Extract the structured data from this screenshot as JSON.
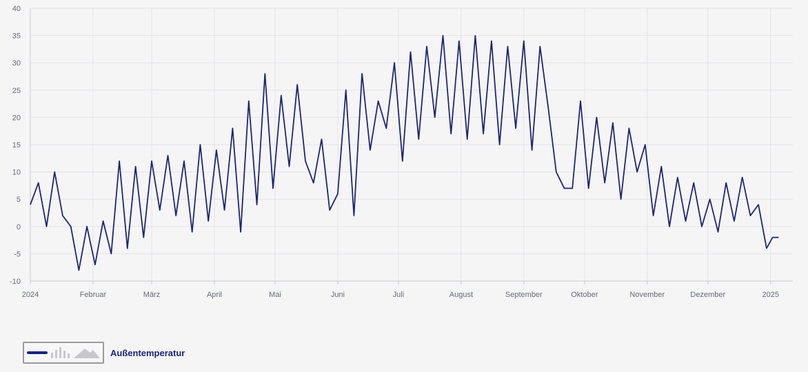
{
  "chart_data": {
    "type": "line",
    "series": [
      {
        "name": "Außentemperatur",
        "color": "#1b2578",
        "x": [
          "2024-01-01",
          "2024-01-05",
          "2024-01-09",
          "2024-01-13",
          "2024-01-17",
          "2024-01-21",
          "2024-01-25",
          "2024-01-29",
          "2024-02-02",
          "2024-02-06",
          "2024-02-10",
          "2024-02-14",
          "2024-02-18",
          "2024-02-22",
          "2024-02-26",
          "2024-03-01",
          "2024-03-05",
          "2024-03-09",
          "2024-03-13",
          "2024-03-17",
          "2024-03-21",
          "2024-03-25",
          "2024-03-29",
          "2024-04-02",
          "2024-04-06",
          "2024-04-10",
          "2024-04-14",
          "2024-04-18",
          "2024-04-22",
          "2024-04-26",
          "2024-04-30",
          "2024-05-04",
          "2024-05-08",
          "2024-05-12",
          "2024-05-16",
          "2024-05-20",
          "2024-05-24",
          "2024-05-28",
          "2024-06-01",
          "2024-06-05",
          "2024-06-09",
          "2024-06-13",
          "2024-06-17",
          "2024-06-21",
          "2024-06-25",
          "2024-06-29",
          "2024-07-03",
          "2024-07-07",
          "2024-07-11",
          "2024-07-15",
          "2024-07-19",
          "2024-07-23",
          "2024-07-27",
          "2024-07-31",
          "2024-08-04",
          "2024-08-08",
          "2024-08-12",
          "2024-08-16",
          "2024-08-20",
          "2024-08-24",
          "2024-08-28",
          "2024-09-01",
          "2024-09-05",
          "2024-09-09",
          "2024-09-13",
          "2024-09-17",
          "2024-09-21",
          "2024-09-25",
          "2024-09-29",
          "2024-10-03",
          "2024-10-07",
          "2024-10-11",
          "2024-10-15",
          "2024-10-19",
          "2024-10-23",
          "2024-10-27",
          "2024-10-31",
          "2024-11-04",
          "2024-11-08",
          "2024-11-12",
          "2024-11-16",
          "2024-11-20",
          "2024-11-24",
          "2024-11-28",
          "2024-12-02",
          "2024-12-06",
          "2024-12-10",
          "2024-12-14",
          "2024-12-18",
          "2024-12-22",
          "2024-12-26",
          "2024-12-30",
          "2025-01-02",
          "2025-01-05"
        ],
        "values": [
          4,
          8,
          0,
          10,
          2,
          0,
          -8,
          0,
          -7,
          1,
          -5,
          12,
          -4,
          11,
          -2,
          12,
          3,
          13,
          2,
          12,
          -1,
          15,
          1,
          14,
          3,
          18,
          -1,
          23,
          4,
          28,
          7,
          24,
          11,
          26,
          12,
          8,
          16,
          3,
          6,
          25,
          2,
          28,
          14,
          23,
          18,
          30,
          12,
          32,
          16,
          33,
          20,
          35,
          17,
          34,
          16,
          35,
          17,
          34,
          15,
          33,
          18,
          34,
          14,
          33,
          22,
          10,
          7,
          7,
          23,
          7,
          20,
          8,
          19,
          5,
          18,
          10,
          15,
          2,
          11,
          0,
          9,
          1,
          8,
          0,
          5,
          -1,
          8,
          1,
          9,
          2,
          4,
          -4,
          -2,
          -2
        ]
      }
    ],
    "xlim": [
      "2024-01-01",
      "2025-01-12"
    ],
    "ylim": [
      -10,
      40
    ],
    "y_ticks": [
      -10,
      -5,
      0,
      5,
      10,
      15,
      20,
      25,
      30,
      35,
      40
    ],
    "x_tick_labels": [
      {
        "date": "2024-01-01",
        "label": "2024"
      },
      {
        "date": "2024-02-01",
        "label": "Februar"
      },
      {
        "date": "2024-03-01",
        "label": "März"
      },
      {
        "date": "2024-04-01",
        "label": "April"
      },
      {
        "date": "2024-05-01",
        "label": "Mai"
      },
      {
        "date": "2024-06-01",
        "label": "Juni"
      },
      {
        "date": "2024-07-01",
        "label": "Juli"
      },
      {
        "date": "2024-08-01",
        "label": "August"
      },
      {
        "date": "2024-09-01",
        "label": "September"
      },
      {
        "date": "2024-10-01",
        "label": "Oktober"
      },
      {
        "date": "2024-11-01",
        "label": "November"
      },
      {
        "date": "2024-12-01",
        "label": "Dezember"
      },
      {
        "date": "2025-01-01",
        "label": "2025"
      }
    ],
    "grid": true,
    "legend_placement": "bottom-left"
  },
  "legend": {
    "label": "Außentemperatur",
    "icons": [
      "line-icon",
      "bar-icon",
      "area-icon"
    ]
  },
  "colors": {
    "series": "#1b2578",
    "grid": "#e4e4e8",
    "axis": "#c9c9cf",
    "tick_text": "#666a74",
    "legend_inactive": "#c8c8cc"
  }
}
